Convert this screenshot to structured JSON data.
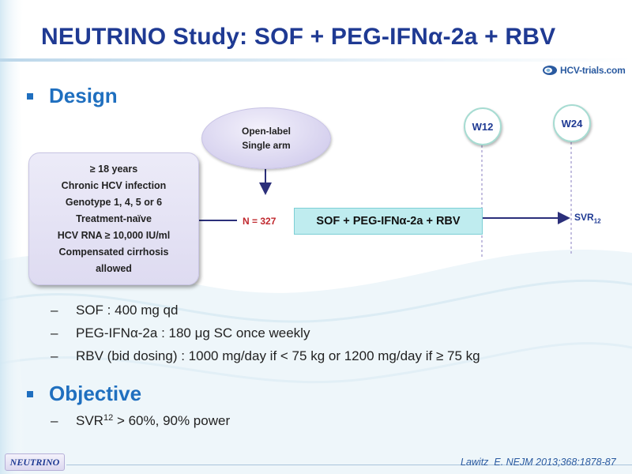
{
  "title": "NEUTRINO Study: SOF + PEG-IFNα-2a + RBV",
  "logo": {
    "text": "HCV-trials.com",
    "icon": "hcv-trials-logo-icon"
  },
  "design": {
    "heading": "Design",
    "bubble": {
      "line1": "Open-label",
      "line2": "Single arm"
    },
    "criteria": [
      "≥ 18 years",
      "Chronic HCV infection",
      "Genotype 1, 4, 5 or 6",
      "Treatment-naïve",
      "HCV RNA ≥ 10,000 IU/ml",
      "Compensated  cirrhosis",
      "allowed"
    ],
    "n_label": "N = 327",
    "treatment_bar": "SOF + PEG-IFNα-2a + RBV",
    "week_12": "W12",
    "week_24": "W24",
    "endpoint": "SVR",
    "endpoint_sub": "12"
  },
  "dosing": [
    "SOF : 400 mg qd",
    "PEG-IFNα-2a : 180 μg SC once weekly",
    "RBV (bid dosing) : 1000 mg/day if < 75 kg or 1200 mg/day if ≥ 75 kg"
  ],
  "objective": {
    "heading": "Objective",
    "item_prefix": "SVR",
    "item_sub": "12",
    "item_suffix": " > 60%, 90% power"
  },
  "footer": {
    "tag": "NEUTRINO",
    "citation": "Lawitz  E. NEJM 2013;368:1878-87"
  },
  "colors": {
    "title": "#1f3a93",
    "heading": "#1f6fbf",
    "treatment_bar": "#bfecef",
    "n_label": "#c0282e",
    "arrow": "#2b2f7a"
  }
}
